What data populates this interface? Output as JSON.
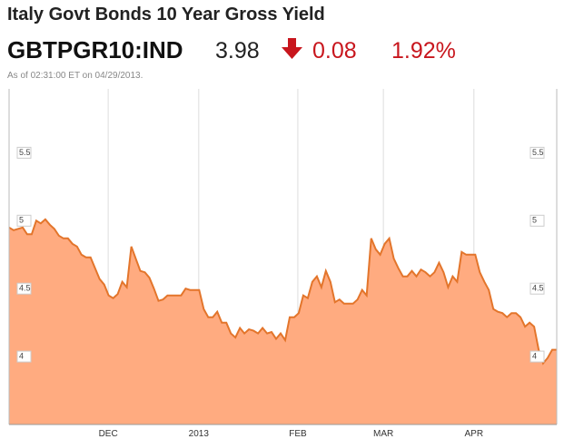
{
  "header": {
    "title": "Italy Govt Bonds 10 Year Gross Yield",
    "ticker": "GBTPGR10:IND",
    "price": "3.98",
    "change": "0.08",
    "change_pct": "1.92%",
    "timestamp": "As of 02:31:00 ET on 04/29/2013."
  },
  "chart_data": {
    "type": "area",
    "color": "#ffab80",
    "line_color": "#e3752b",
    "values": [
      4.95,
      4.93,
      4.94,
      4.95,
      4.9,
      4.9,
      5.0,
      4.98,
      5.01,
      4.97,
      4.94,
      4.89,
      4.87,
      4.87,
      4.83,
      4.81,
      4.75,
      4.73,
      4.73,
      4.65,
      4.57,
      4.53,
      4.45,
      4.43,
      4.46,
      4.55,
      4.51,
      4.81,
      4.72,
      4.63,
      4.62,
      4.58,
      4.5,
      4.41,
      4.42,
      4.45,
      4.45,
      4.45,
      4.45,
      4.5,
      4.49,
      4.49,
      4.49,
      4.35,
      4.29,
      4.29,
      4.33,
      4.25,
      4.25,
      4.17,
      4.14,
      4.21,
      4.17,
      4.2,
      4.19,
      4.17,
      4.21,
      4.17,
      4.18,
      4.13,
      4.17,
      4.12,
      4.29,
      4.29,
      4.32,
      4.45,
      4.43,
      4.55,
      4.59,
      4.51,
      4.63,
      4.55,
      4.4,
      4.42,
      4.39,
      4.39,
      4.39,
      4.42,
      4.49,
      4.45,
      4.87,
      4.79,
      4.75,
      4.83,
      4.87,
      4.72,
      4.65,
      4.59,
      4.59,
      4.63,
      4.59,
      4.64,
      4.62,
      4.59,
      4.62,
      4.69,
      4.62,
      4.51,
      4.59,
      4.55,
      4.77,
      4.75,
      4.75,
      4.75,
      4.62,
      4.55,
      4.49,
      4.35,
      4.33,
      4.32,
      4.29,
      4.32,
      4.32,
      4.29,
      4.22,
      4.25,
      4.22,
      4.05,
      3.95,
      3.99,
      4.05,
      4.05
    ],
    "xlim": [
      0,
      121
    ],
    "xticks": [
      {
        "value": 21.9,
        "label": "DEC"
      },
      {
        "value": 41.9,
        "label": "2013"
      },
      {
        "value": 63.8,
        "label": "FEB"
      },
      {
        "value": 82.7,
        "label": "MAR"
      },
      {
        "value": 102.7,
        "label": "APR"
      }
    ],
    "ylim": [
      3.5,
      5.97
    ],
    "yticks": [
      4,
      4.5,
      5,
      5.5
    ],
    "grid": true
  }
}
